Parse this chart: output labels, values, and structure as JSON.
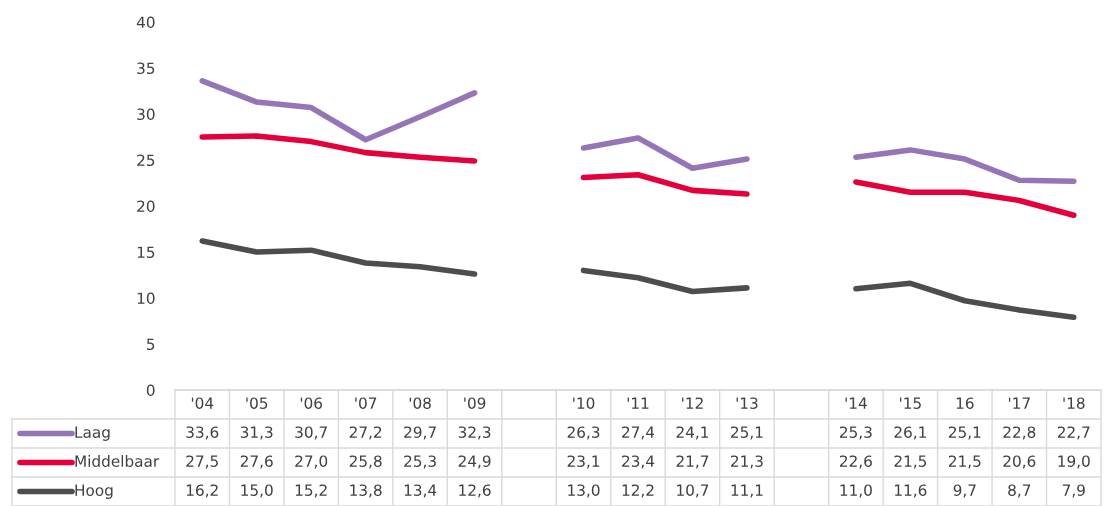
{
  "chart_data": {
    "type": "line",
    "categories": [
      "'04",
      "'05",
      "'06",
      "'07",
      "'08",
      "'09",
      null,
      "'10",
      "'11",
      "'12",
      "'13",
      null,
      "'14",
      "'15",
      "16",
      "'17",
      "'18"
    ],
    "series": [
      {
        "name": "Laag",
        "color": "#9575b5",
        "values": [
          33.6,
          31.3,
          30.7,
          27.2,
          29.7,
          32.3,
          null,
          26.3,
          27.4,
          24.1,
          25.1,
          null,
          25.3,
          26.1,
          25.1,
          22.8,
          22.7
        ],
        "value_labels": [
          "33,6",
          "31,3",
          "30,7",
          "27,2",
          "29,7",
          "32,3",
          null,
          "26,3",
          "27,4",
          "24,1",
          "25,1",
          null,
          "25,3",
          "26,1",
          "25,1",
          "22,8",
          "22,7"
        ]
      },
      {
        "name": "Middelbaar",
        "color": "#e4003a",
        "values": [
          27.5,
          27.6,
          27.0,
          25.8,
          25.3,
          24.9,
          null,
          23.1,
          23.4,
          21.7,
          21.3,
          null,
          22.6,
          21.5,
          21.5,
          20.6,
          19.0
        ],
        "value_labels": [
          "27,5",
          "27,6",
          "27,0",
          "25,8",
          "25,3",
          "24,9",
          null,
          "23,1",
          "23,4",
          "21,7",
          "21,3",
          null,
          "22,6",
          "21,5",
          "21,5",
          "20,6",
          "19,0"
        ]
      },
      {
        "name": "Hoog",
        "color": "#4d4d4d",
        "values": [
          16.2,
          15.0,
          15.2,
          13.8,
          13.4,
          12.6,
          null,
          13.0,
          12.2,
          10.7,
          11.1,
          null,
          11.0,
          11.6,
          9.7,
          8.7,
          7.9
        ],
        "value_labels": [
          "16,2",
          "15,0",
          "15,2",
          "13,8",
          "13,4",
          "12,6",
          null,
          "13,0",
          "12,2",
          "10,7",
          "11,1",
          null,
          "11,0",
          "11,6",
          "9,7",
          "8,7",
          "7,9"
        ]
      }
    ],
    "ylim": [
      0,
      40
    ],
    "yticks": [
      0,
      5,
      10,
      15,
      20,
      25,
      30,
      35,
      40
    ],
    "grid": false,
    "legend": "bottom",
    "marker": "none",
    "line_style": "solid"
  }
}
